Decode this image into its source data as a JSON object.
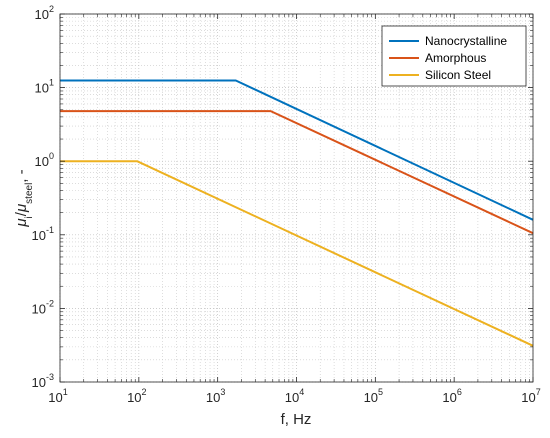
{
  "chart_data": {
    "type": "line",
    "xscale": "log",
    "yscale": "log",
    "xlim": [
      10,
      10000000
    ],
    "ylim": [
      0.001,
      100
    ],
    "grid": true,
    "grid_minor": true,
    "xlabel": "f, Hz",
    "ylabel": {
      "mu": "μ",
      "sub_i": "i",
      "slash": "/",
      "sub_steel": "steel",
      "suffix": ", -"
    },
    "x_ticks": [
      {
        "value": 10,
        "base": "10",
        "exp": "1"
      },
      {
        "value": 100,
        "base": "10",
        "exp": "2"
      },
      {
        "value": 1000,
        "base": "10",
        "exp": "3"
      },
      {
        "value": 10000,
        "base": "10",
        "exp": "4"
      },
      {
        "value": 100000,
        "base": "10",
        "exp": "5"
      },
      {
        "value": 1000000,
        "base": "10",
        "exp": "6"
      },
      {
        "value": 10000000,
        "base": "10",
        "exp": "7"
      }
    ],
    "y_ticks": [
      {
        "value": 0.001,
        "base": "10",
        "exp": "-3"
      },
      {
        "value": 0.01,
        "base": "10",
        "exp": "-2"
      },
      {
        "value": 0.1,
        "base": "10",
        "exp": "-1"
      },
      {
        "value": 1,
        "base": "10",
        "exp": "0"
      },
      {
        "value": 10,
        "base": "10",
        "exp": "1"
      },
      {
        "value": 100,
        "base": "10",
        "exp": "2"
      }
    ],
    "legend_position": "top-right",
    "series": [
      {
        "name": "Nanocrystalline",
        "color": "#0072BD",
        "points": [
          [
            10,
            12.5
          ],
          [
            1700,
            12.5
          ],
          [
            10000000,
            0.16
          ]
        ]
      },
      {
        "name": "Amorphous",
        "color": "#D95319",
        "points": [
          [
            10,
            4.8
          ],
          [
            4700,
            4.8
          ],
          [
            10000000,
            0.105
          ]
        ]
      },
      {
        "name": "Silicon Steel",
        "color": "#EDB120",
        "points": [
          [
            10,
            1.0
          ],
          [
            95,
            1.0
          ],
          [
            10000000,
            0.0031
          ]
        ]
      }
    ]
  }
}
